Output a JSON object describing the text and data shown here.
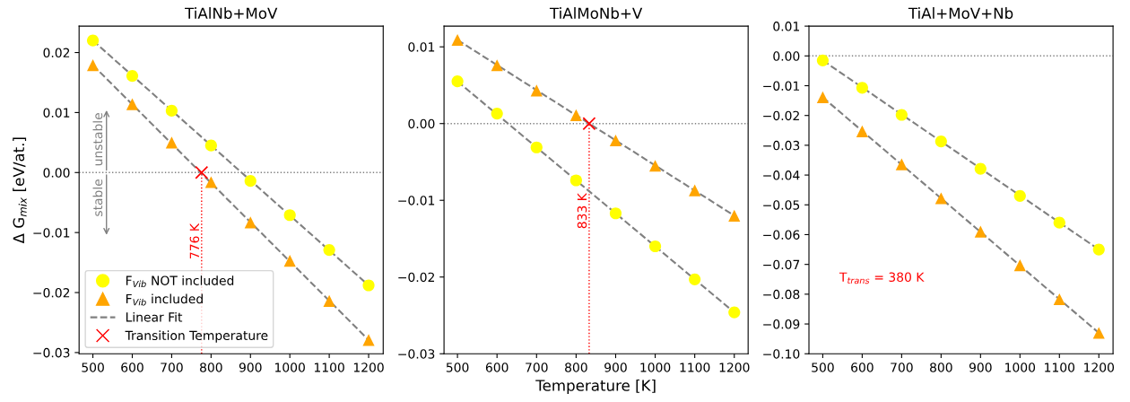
{
  "chart_data": [
    {
      "type": "scatter",
      "title": "TiAlNb+MoV",
      "ylabel": "Δ G$_{mix}$ [eV/at.]",
      "x": [
        500,
        600,
        700,
        800,
        900,
        1000,
        1100,
        1200
      ],
      "xlim": [
        465,
        1237
      ],
      "ylim": [
        -0.0302,
        0.0244
      ],
      "xticks": [
        500,
        600,
        700,
        800,
        900,
        1000,
        1100,
        1200
      ],
      "yticks": [
        {
          "value": -0.03,
          "label": "−0.03"
        },
        {
          "value": -0.02,
          "label": "−0.02"
        },
        {
          "value": -0.01,
          "label": "−0.01"
        },
        {
          "value": 0.0,
          "label": "0.00"
        },
        {
          "value": 0.01,
          "label": "0.01"
        },
        {
          "value": 0.02,
          "label": "0.02"
        }
      ],
      "legend": "lower left",
      "grid": false,
      "series": [
        {
          "name": "F$_{Vib}$ NOT included",
          "color": "#ffff00",
          "marker": "circle",
          "values": [
            0.022,
            0.0161,
            0.0103,
            0.0045,
            -0.0014,
            -0.0071,
            -0.0129,
            -0.0188
          ]
        },
        {
          "name": "F$_{Vib}$ included",
          "color": "#ffa500",
          "marker": "triangle",
          "values": [
            0.0179,
            0.0114,
            0.005,
            -0.0016,
            -0.0083,
            -0.0147,
            -0.0214,
            -0.0279
          ]
        },
        {
          "name": "Linear Fit",
          "type": "line",
          "line_style": "dashed",
          "marker": "none",
          "color": "#808080",
          "x": [
            500,
            1200
          ],
          "values": [
            0.022,
            -0.0188
          ]
        },
        {
          "type": "line",
          "line_style": "dashed",
          "marker": "none",
          "color": "#808080",
          "x": [
            500,
            1200
          ],
          "values": [
            0.0179,
            -0.0279
          ]
        },
        {
          "name": "Transition Temperature",
          "color": "#ff0000",
          "marker": "cross",
          "x": [
            776
          ],
          "values": [
            0.0
          ]
        }
      ],
      "ref_lines": [
        {
          "axis": "y",
          "value": 0.0,
          "color": "#808080",
          "line_style": "dotted"
        },
        {
          "axis": "x",
          "value": 776,
          "label": "776 K",
          "color": "#ff0000",
          "line_style": "dotted"
        }
      ],
      "annotations": [
        "unstable",
        "stable"
      ]
    },
    {
      "type": "scatter",
      "title": "TiAlMoNb+V",
      "xlabel": "Temperature [K]",
      "x": [
        500,
        600,
        700,
        800,
        900,
        1000,
        1100,
        1200
      ],
      "xlim": [
        466,
        1235
      ],
      "ylim": [
        -0.03,
        0.0127
      ],
      "xticks": [
        500,
        600,
        700,
        800,
        900,
        1000,
        1100,
        1200
      ],
      "yticks": [
        {
          "value": -0.03,
          "label": "−0.03"
        },
        {
          "value": -0.02,
          "label": "−0.02"
        },
        {
          "value": -0.01,
          "label": "−0.01"
        },
        {
          "value": 0.0,
          "label": "0.00"
        },
        {
          "value": 0.01,
          "label": "0.01"
        }
      ],
      "grid": false,
      "series": [
        {
          "color": "#ffff00",
          "marker": "circle",
          "values": [
            0.0055,
            0.0013,
            -0.0031,
            -0.0074,
            -0.0117,
            -0.016,
            -0.0203,
            -0.0246
          ]
        },
        {
          "color": "#ffa500",
          "marker": "triangle",
          "values": [
            0.0109,
            0.0076,
            0.0043,
            0.0011,
            -0.0022,
            -0.0055,
            -0.0087,
            -0.012
          ]
        },
        {
          "type": "line",
          "line_style": "dashed",
          "marker": "none",
          "color": "#808080",
          "x": [
            500,
            1200
          ],
          "values": [
            0.0055,
            -0.0246
          ]
        },
        {
          "type": "line",
          "line_style": "dashed",
          "marker": "none",
          "color": "#808080",
          "x": [
            500,
            1200
          ],
          "values": [
            0.0109,
            -0.012
          ]
        },
        {
          "color": "#ff0000",
          "marker": "cross",
          "x": [
            833
          ],
          "values": [
            0.0
          ]
        }
      ],
      "ref_lines": [
        {
          "axis": "y",
          "value": 0.0,
          "color": "#808080",
          "line_style": "dotted"
        },
        {
          "axis": "x",
          "value": 833,
          "label": "833 K",
          "color": "#ff0000",
          "line_style": "dotted"
        }
      ]
    },
    {
      "type": "scatter",
      "title": "TiAl+MoV+Nb",
      "x": [
        500,
        600,
        700,
        800,
        900,
        1000,
        1100,
        1200
      ],
      "xlim": [
        465,
        1236
      ],
      "ylim": [
        -0.1,
        0.01
      ],
      "xticks": [
        500,
        600,
        700,
        800,
        900,
        1000,
        1100,
        1200
      ],
      "yticks": [
        {
          "value": -0.1,
          "label": "−0.10"
        },
        {
          "value": -0.09,
          "label": "−0.09"
        },
        {
          "value": -0.08,
          "label": "−0.08"
        },
        {
          "value": -0.07,
          "label": "−0.07"
        },
        {
          "value": -0.06,
          "label": "−0.06"
        },
        {
          "value": -0.05,
          "label": "−0.05"
        },
        {
          "value": -0.04,
          "label": "−0.04"
        },
        {
          "value": -0.03,
          "label": "−0.03"
        },
        {
          "value": -0.02,
          "label": "−0.02"
        },
        {
          "value": -0.01,
          "label": "−0.01"
        },
        {
          "value": 0.0,
          "label": "0.00"
        },
        {
          "value": 0.01,
          "label": "0.01"
        }
      ],
      "grid": false,
      "series": [
        {
          "color": "#ffff00",
          "marker": "circle",
          "values": [
            -0.0015,
            -0.0107,
            -0.0198,
            -0.0287,
            -0.0379,
            -0.047,
            -0.056,
            -0.065
          ]
        },
        {
          "color": "#ffa500",
          "marker": "triangle",
          "values": [
            -0.0139,
            -0.0253,
            -0.0364,
            -0.0478,
            -0.059,
            -0.0703,
            -0.0817,
            -0.093
          ]
        },
        {
          "type": "line",
          "line_style": "dashed",
          "marker": "none",
          "color": "#808080",
          "x": [
            500,
            1200
          ],
          "values": [
            -0.0015,
            -0.065
          ]
        },
        {
          "type": "line",
          "line_style": "dashed",
          "marker": "none",
          "color": "#808080",
          "x": [
            500,
            1200
          ],
          "values": [
            -0.0139,
            -0.093
          ]
        }
      ],
      "ref_lines": [
        {
          "axis": "y",
          "value": 0.0,
          "color": "#808080",
          "line_style": "dotted"
        }
      ],
      "annotations": [
        "T$_{trans}$ = 380 K"
      ]
    }
  ]
}
